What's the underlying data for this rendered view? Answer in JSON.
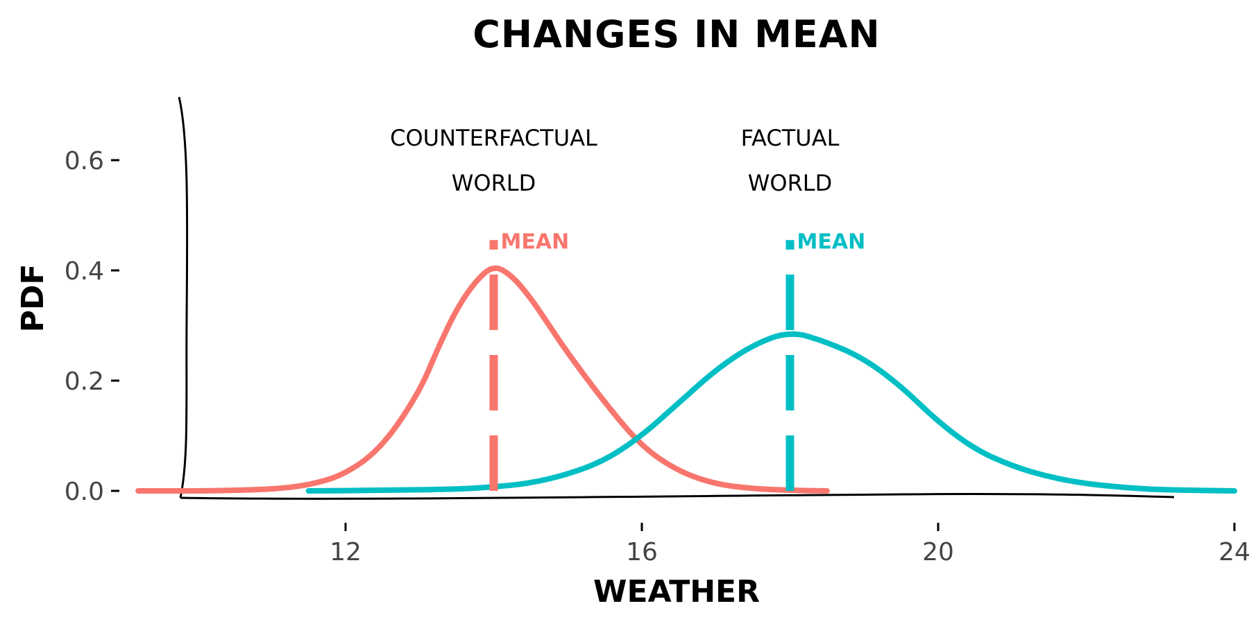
{
  "chart_data": {
    "type": "line",
    "title": "CHANGES IN MEAN",
    "xlabel": "WEATHER",
    "ylabel": "PDF",
    "xlim": [
      9.5,
      24
    ],
    "ylim": [
      0,
      0.72
    ],
    "x_ticks": [
      12,
      16,
      20,
      24
    ],
    "y_ticks": [
      0.0,
      0.2,
      0.4,
      0.6
    ],
    "x_tick_labels": [
      "12",
      "16",
      "20",
      "24"
    ],
    "y_tick_labels": [
      "0.0",
      "0.2",
      "0.4",
      "0.6"
    ],
    "grid": false,
    "series": [
      {
        "color": "#F8766D",
        "mean": 14,
        "mean_label": "MEAN",
        "mean_line_top": 0.455,
        "points": [
          [
            9.2,
            0.0
          ],
          [
            10.0,
            0.0
          ],
          [
            10.5,
            0.001
          ],
          [
            11.0,
            0.003
          ],
          [
            11.5,
            0.01
          ],
          [
            12.0,
            0.03
          ],
          [
            12.5,
            0.08
          ],
          [
            13.0,
            0.18
          ],
          [
            13.25,
            0.26
          ],
          [
            13.5,
            0.33
          ],
          [
            13.75,
            0.38
          ],
          [
            14.0,
            0.41
          ],
          [
            14.25,
            0.39
          ],
          [
            14.5,
            0.35
          ],
          [
            14.75,
            0.3
          ],
          [
            15.0,
            0.25
          ],
          [
            15.5,
            0.16
          ],
          [
            16.0,
            0.08
          ],
          [
            16.5,
            0.035
          ],
          [
            17.0,
            0.012
          ],
          [
            17.5,
            0.004
          ],
          [
            18.0,
            0.001
          ],
          [
            18.5,
            0.0
          ]
        ]
      },
      {
        "color": "#00BFC4",
        "mean": 18,
        "mean_label": "MEAN",
        "mean_line_top": 0.455,
        "points": [
          [
            11.5,
            0.0
          ],
          [
            12.5,
            0.001
          ],
          [
            13.5,
            0.003
          ],
          [
            14.0,
            0.007
          ],
          [
            14.5,
            0.014
          ],
          [
            15.0,
            0.03
          ],
          [
            15.5,
            0.055
          ],
          [
            16.0,
            0.1
          ],
          [
            16.5,
            0.16
          ],
          [
            17.0,
            0.22
          ],
          [
            17.5,
            0.265
          ],
          [
            18.0,
            0.29
          ],
          [
            18.5,
            0.27
          ],
          [
            19.0,
            0.24
          ],
          [
            19.5,
            0.19
          ],
          [
            20.0,
            0.125
          ],
          [
            20.5,
            0.075
          ],
          [
            21.0,
            0.045
          ],
          [
            21.5,
            0.025
          ],
          [
            22.0,
            0.013
          ],
          [
            22.5,
            0.006
          ],
          [
            23.0,
            0.002
          ],
          [
            24.0,
            0.0
          ]
        ]
      }
    ],
    "annotations": [
      {
        "line1": "COUNTERFACTUAL",
        "line2": "WORLD",
        "x": 14,
        "y": 0.6
      },
      {
        "line1": "FACTUAL",
        "line2": "WORLD",
        "x": 18,
        "y": 0.6
      }
    ]
  }
}
